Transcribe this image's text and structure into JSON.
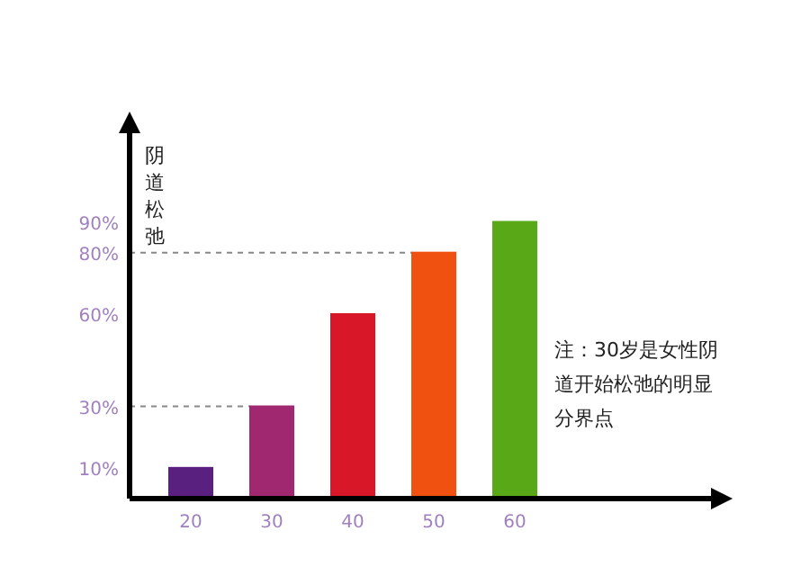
{
  "chart_data": {
    "type": "bar",
    "ylabel": "阴道松弛",
    "categories": [
      "20",
      "30",
      "40",
      "50",
      "60"
    ],
    "values": [
      10,
      30,
      60,
      80,
      90
    ],
    "colors": [
      "#5a2080",
      "#a02870",
      "#d81828",
      "#f05010",
      "#58a818"
    ],
    "ylim": [
      0,
      120
    ],
    "yticks": [
      {
        "value": 10,
        "label": "10%"
      },
      {
        "value": 30,
        "label": "30%"
      },
      {
        "value": 60,
        "label": "60%"
      },
      {
        "value": 80,
        "label": "80%"
      },
      {
        "value": 90,
        "label": "90%"
      }
    ],
    "ref_lines": [
      {
        "axis": "y",
        "value": 80,
        "line_style": "dashed",
        "color": "#888888"
      },
      {
        "axis": "y",
        "value": 30,
        "line_style": "dashed",
        "color": "#888888"
      }
    ],
    "annotations": [
      "注：30岁是女性阴道开始松弛的明显分界点"
    ]
  }
}
